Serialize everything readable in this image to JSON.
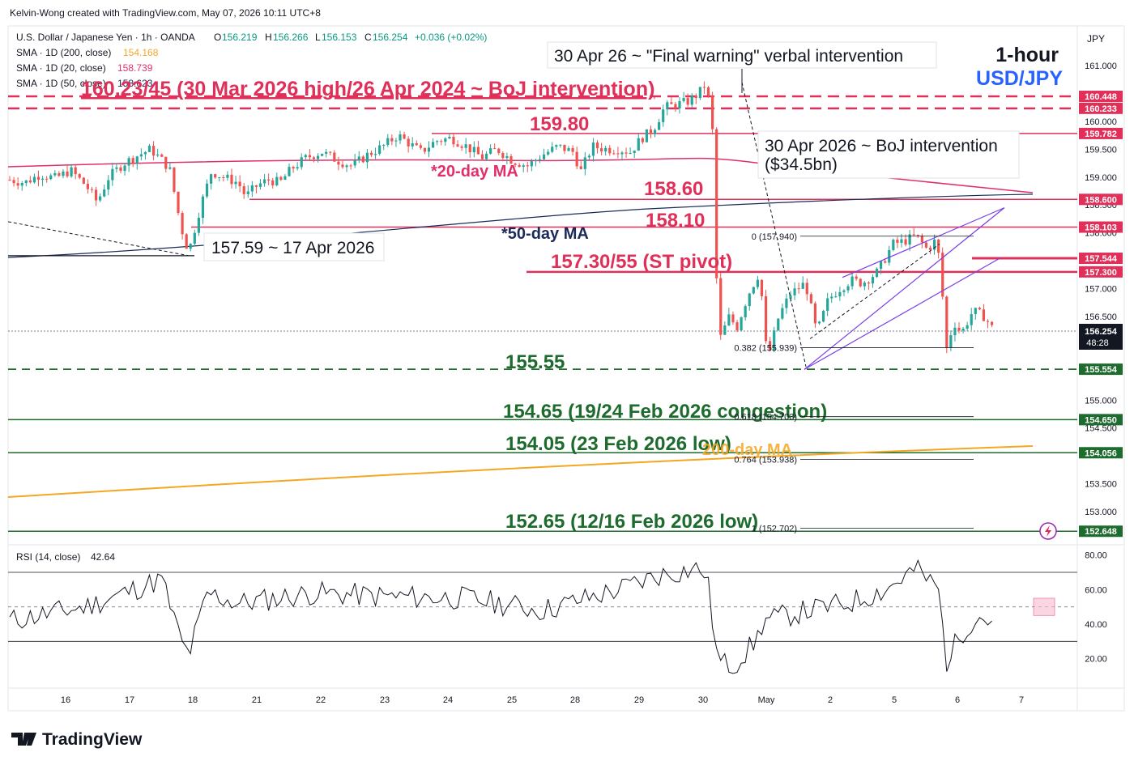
{
  "header": {
    "credit": "Kelvin-Wong created with TradingView.com, May 07, 2026 10:11 UTC+8",
    "symbol": "U.S. Dollar / Japanese Yen · 1h · OANDA",
    "ohlc": {
      "o_label": "O",
      "o": "156.219",
      "h_label": "H",
      "h": "156.266",
      "l_label": "L",
      "l": "156.153",
      "c_label": "C",
      "c": "156.254",
      "change": "+0.036 (+0.02%)"
    },
    "indicators": [
      {
        "label": "SMA · 1D (200, close)",
        "value": "154.168",
        "color": "#f5a623"
      },
      {
        "label": "SMA · 1D (20, close)",
        "value": "158.739",
        "color": "#e0306a"
      },
      {
        "label": "SMA · 1D (50, close)",
        "value": "158.623",
        "color": "#1a2a5a"
      }
    ]
  },
  "title_box": {
    "line1": "1-hour",
    "line2": "USD/JPY"
  },
  "currency_label": "JPY",
  "colors": {
    "resistance": "#e0305a",
    "support": "#1e6b2e",
    "ma20": "#e0306a",
    "ma50": "#1a2a5a",
    "ma200": "#f5a623",
    "candle_up": "#26a69a",
    "candle_down": "#ef5350",
    "channel": "#7b3fe4"
  },
  "annotations": {
    "final_warning": "30 Apr 26 ~ \"Final warning\" verbal intervention",
    "boj_intervention_line1": "30 Apr 2026 ~ BoJ intervention",
    "boj_intervention_line2": "($34.5bn)",
    "low_17apr": "157.59 ~ 17 Apr 2026",
    "ma20_label": "*20-day MA",
    "ma50_label": "*50-day MA",
    "ma200_label": "200-day MA"
  },
  "levels": {
    "r1": "160.23/45 (30 Mar 2026 high/26 Apr 2024 ~ BoJ intervention)",
    "r2": "159.80",
    "r3": "158.60",
    "r4": "158.10",
    "pivot": "157.30/55 (ST pivot)",
    "s1": "155.55",
    "s2": "154.65 (19/24 Feb 2026 congestion)",
    "s3": "154.05 (23 Feb 2026 low)",
    "s4": "152.65 (12/16 Feb 2026 low)"
  },
  "fib": [
    {
      "label": "0 (157.940)",
      "price": 157.94
    },
    {
      "label": "0.382 (155.939)",
      "price": 155.939
    },
    {
      "label": "0.618 (154.703)",
      "price": 154.703
    },
    {
      "label": "0.764 (153.938)",
      "price": 153.938
    },
    {
      "label": "1 (152.702)",
      "price": 152.702
    }
  ],
  "price_axis": {
    "ticks": [
      "161.000",
      "160.000",
      "159.500",
      "159.000",
      "158.500",
      "158.000",
      "157.000",
      "156.500",
      "155.000",
      "154.500",
      "153.500",
      "153.000"
    ],
    "tick_values": [
      161.0,
      160.0,
      159.5,
      159.0,
      158.5,
      158.0,
      157.0,
      156.5,
      155.0,
      154.5,
      153.5,
      153.0
    ],
    "tags": [
      {
        "text": "160.448",
        "value": 160.448,
        "color": "#e0305a"
      },
      {
        "text": "160.233",
        "value": 160.233,
        "color": "#e0305a"
      },
      {
        "text": "159.782",
        "value": 159.782,
        "color": "#e0305a"
      },
      {
        "text": "158.600",
        "value": 158.6,
        "color": "#e0305a"
      },
      {
        "text": "158.103",
        "value": 158.103,
        "color": "#e0305a"
      },
      {
        "text": "157.544",
        "value": 157.544,
        "color": "#e0305a"
      },
      {
        "text": "157.300",
        "value": 157.3,
        "color": "#e0305a"
      },
      {
        "text": "155.554",
        "value": 155.554,
        "color": "#1e6b2e"
      },
      {
        "text": "154.650",
        "value": 154.65,
        "color": "#1e6b2e"
      },
      {
        "text": "154.056",
        "value": 154.056,
        "color": "#1e6b2e"
      },
      {
        "text": "152.648",
        "value": 152.648,
        "color": "#1e6b2e"
      }
    ],
    "last_price": "156.254",
    "countdown": "48:28"
  },
  "rsi": {
    "label": "RSI (14, close)",
    "value": "42.64",
    "ticks": [
      "80.00",
      "60.00",
      "40.00",
      "20.00"
    ],
    "tick_values": [
      80,
      60,
      40,
      20
    ]
  },
  "time_axis": {
    "labels": [
      "16",
      "17",
      "18",
      "21",
      "22",
      "23",
      "24",
      "25",
      "28",
      "29",
      "30",
      "May",
      "2",
      "5",
      "6",
      "7"
    ]
  },
  "footer": {
    "brand": "TradingView"
  },
  "chart_data": {
    "type": "candlestick",
    "timeframe": "1h",
    "ylim": [
      152.4,
      161.3
    ],
    "close_path": [
      [
        0,
        158.95
      ],
      [
        0.02,
        158.9
      ],
      [
        0.04,
        159.05
      ],
      [
        0.06,
        158.98
      ],
      [
        0.08,
        159.12
      ],
      [
        0.1,
        158.85
      ],
      [
        0.115,
        158.55
      ],
      [
        0.13,
        159.0
      ],
      [
        0.15,
        159.25
      ],
      [
        0.17,
        159.4
      ],
      [
        0.185,
        159.5
      ],
      [
        0.2,
        159.3
      ],
      [
        0.21,
        159.15
      ],
      [
        0.225,
        158.1
      ],
      [
        0.235,
        157.65
      ],
      [
        0.25,
        158.45
      ],
      [
        0.265,
        159.1
      ],
      [
        0.28,
        159.0
      ],
      [
        0.3,
        158.9
      ],
      [
        0.31,
        158.65
      ],
      [
        0.325,
        158.85
      ],
      [
        0.34,
        158.95
      ],
      [
        0.355,
        158.9
      ],
      [
        0.37,
        159.15
      ],
      [
        0.39,
        159.35
      ],
      [
        0.41,
        159.45
      ],
      [
        0.43,
        159.3
      ],
      [
        0.45,
        159.2
      ],
      [
        0.47,
        159.4
      ],
      [
        0.49,
        159.55
      ],
      [
        0.51,
        159.75
      ],
      [
        0.525,
        159.6
      ],
      [
        0.54,
        159.45
      ],
      [
        0.56,
        159.65
      ],
      [
        0.58,
        159.7
      ],
      [
        0.6,
        159.55
      ],
      [
        0.62,
        159.35
      ],
      [
        0.64,
        159.5
      ],
      [
        0.66,
        159.3
      ],
      [
        0.68,
        159.2
      ],
      [
        0.7,
        159.4
      ],
      [
        0.72,
        159.55
      ],
      [
        0.74,
        159.45
      ],
      [
        0.75,
        159.1
      ],
      [
        0.765,
        159.55
      ],
      [
        0.785,
        159.5
      ],
      [
        0.8,
        159.5
      ],
      [
        0.815,
        159.45
      ],
      [
        0.83,
        159.7
      ],
      [
        0.845,
        159.85
      ],
      [
        0.86,
        160.25
      ],
      [
        0.875,
        160.3
      ],
      [
        0.89,
        160.35
      ],
      [
        0.905,
        160.5
      ],
      [
        0.915,
        160.7
      ],
      [
        0.925,
        159.6
      ],
      [
        0.93,
        156.0
      ],
      [
        0.945,
        156.5
      ],
      [
        0.955,
        156.3
      ],
      [
        0.97,
        156.9
      ],
      [
        0.985,
        157.3
      ],
      [
        0.995,
        155.7
      ],
      [
        1.01,
        156.5
      ],
      [
        1.025,
        156.9
      ],
      [
        1.045,
        157.1
      ],
      [
        1.06,
        156.2
      ],
      [
        1.075,
        156.8
      ],
      [
        1.09,
        157.0
      ],
      [
        1.105,
        157.15
      ],
      [
        1.12,
        157.1
      ],
      [
        1.14,
        157.3
      ],
      [
        1.16,
        157.8
      ],
      [
        1.175,
        157.85
      ],
      [
        1.19,
        157.95
      ],
      [
        1.205,
        157.7
      ],
      [
        1.215,
        157.85
      ],
      [
        1.222,
        157.5
      ],
      [
        1.23,
        155.9
      ],
      [
        1.24,
        156.4
      ],
      [
        1.25,
        156.2
      ],
      [
        1.265,
        156.6
      ],
      [
        1.28,
        156.5
      ],
      [
        1.29,
        156.3
      ]
    ]
  }
}
